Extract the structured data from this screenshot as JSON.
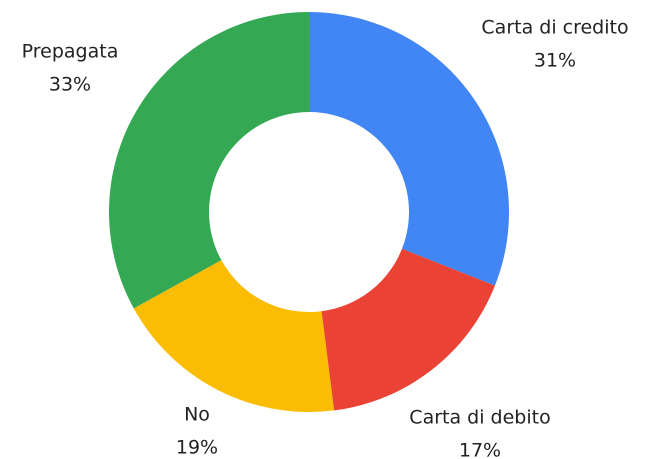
{
  "chart_data": {
    "type": "donut",
    "categories": [
      "Carta di credito",
      "Carta di debito",
      "No",
      "Prepagata"
    ],
    "values": [
      31,
      17,
      19,
      33
    ],
    "value_labels": [
      "31%",
      "17%",
      "19%",
      "33%"
    ],
    "colors": [
      "#4285f4",
      "#ea4335",
      "#fbbc04",
      "#34a853"
    ]
  }
}
